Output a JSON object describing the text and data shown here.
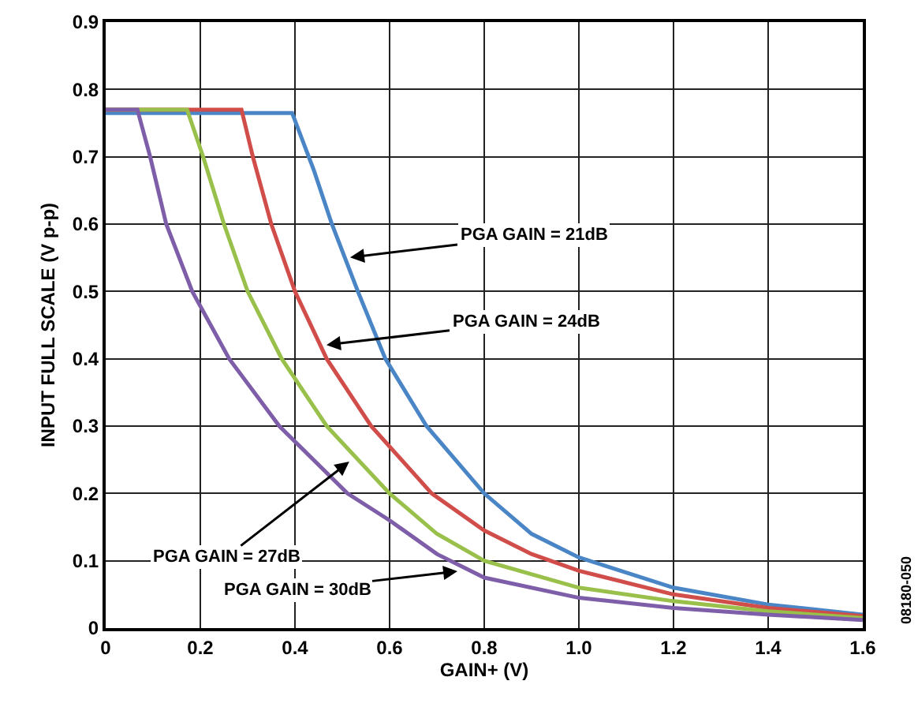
{
  "chart_data": {
    "type": "line",
    "xlabel": "GAIN+ (V)",
    "ylabel": "INPUT FULL SCALE (V p-p)",
    "xlim": [
      0,
      1.6
    ],
    "xticks": [
      0,
      0.2,
      0.4,
      0.6,
      0.8,
      {
        "value": 1,
        "label": "1.0"
      },
      1.2,
      1.4,
      1.6
    ],
    "ylim": [
      0,
      0.9
    ],
    "yticks": [
      0,
      0.1,
      0.2,
      0.3,
      0.4,
      0.5,
      0.6,
      0.7,
      0.8,
      0.9
    ],
    "grid": true,
    "marker": "none",
    "line_style": "solid",
    "series": [
      {
        "color": "#4a86c6",
        "x": [
          0,
          0.394,
          0.44,
          0.478,
          0.533,
          0.591,
          0.678,
          0.8,
          0.9,
          1.0,
          1.2,
          1.4,
          1.6
        ],
        "values": [
          0.765,
          0.765,
          0.68,
          0.6,
          0.5,
          0.4,
          0.3,
          0.2,
          0.14,
          0.105,
          0.06,
          0.035,
          0.02
        ]
      },
      {
        "color": "#d04d4a",
        "x": [
          0,
          0.287,
          0.311,
          0.35,
          0.4,
          0.467,
          0.561,
          0.689,
          0.8,
          0.9,
          1.0,
          1.2,
          1.4,
          1.6
        ],
        "values": [
          0.77,
          0.77,
          0.7,
          0.6,
          0.5,
          0.4,
          0.3,
          0.2,
          0.145,
          0.11,
          0.085,
          0.05,
          0.03,
          0.018
        ]
      },
      {
        "color": "#98c04a",
        "x": [
          0,
          0.172,
          0.206,
          0.25,
          0.3,
          0.372,
          0.467,
          0.6,
          0.7,
          0.8,
          1.0,
          1.2,
          1.4,
          1.6
        ],
        "values": [
          0.77,
          0.77,
          0.7,
          0.6,
          0.5,
          0.4,
          0.3,
          0.2,
          0.14,
          0.1,
          0.06,
          0.04,
          0.025,
          0.015
        ]
      },
      {
        "color": "#7e5ea8",
        "x": [
          0,
          0.067,
          0.094,
          0.128,
          0.183,
          0.261,
          0.367,
          0.511,
          0.6,
          0.7,
          0.8,
          1.0,
          1.2,
          1.4,
          1.6
        ],
        "values": [
          0.77,
          0.77,
          0.7,
          0.6,
          0.5,
          0.4,
          0.3,
          0.2,
          0.16,
          0.11,
          0.075,
          0.045,
          0.03,
          0.02,
          0.012
        ]
      }
    ],
    "annotations": [
      {
        "text": "PGA GAIN = 21dB",
        "x": 0.51,
        "y": 0.55
      },
      {
        "text": "PGA GAIN = 24dB",
        "x": 0.46,
        "y": 0.42
      },
      {
        "text": "PGA GAIN = 27dB",
        "x": 0.52,
        "y": 0.25
      },
      {
        "text": "PGA GAIN = 30dB",
        "x": 0.75,
        "y": 0.085
      },
      "08180-050"
    ]
  }
}
